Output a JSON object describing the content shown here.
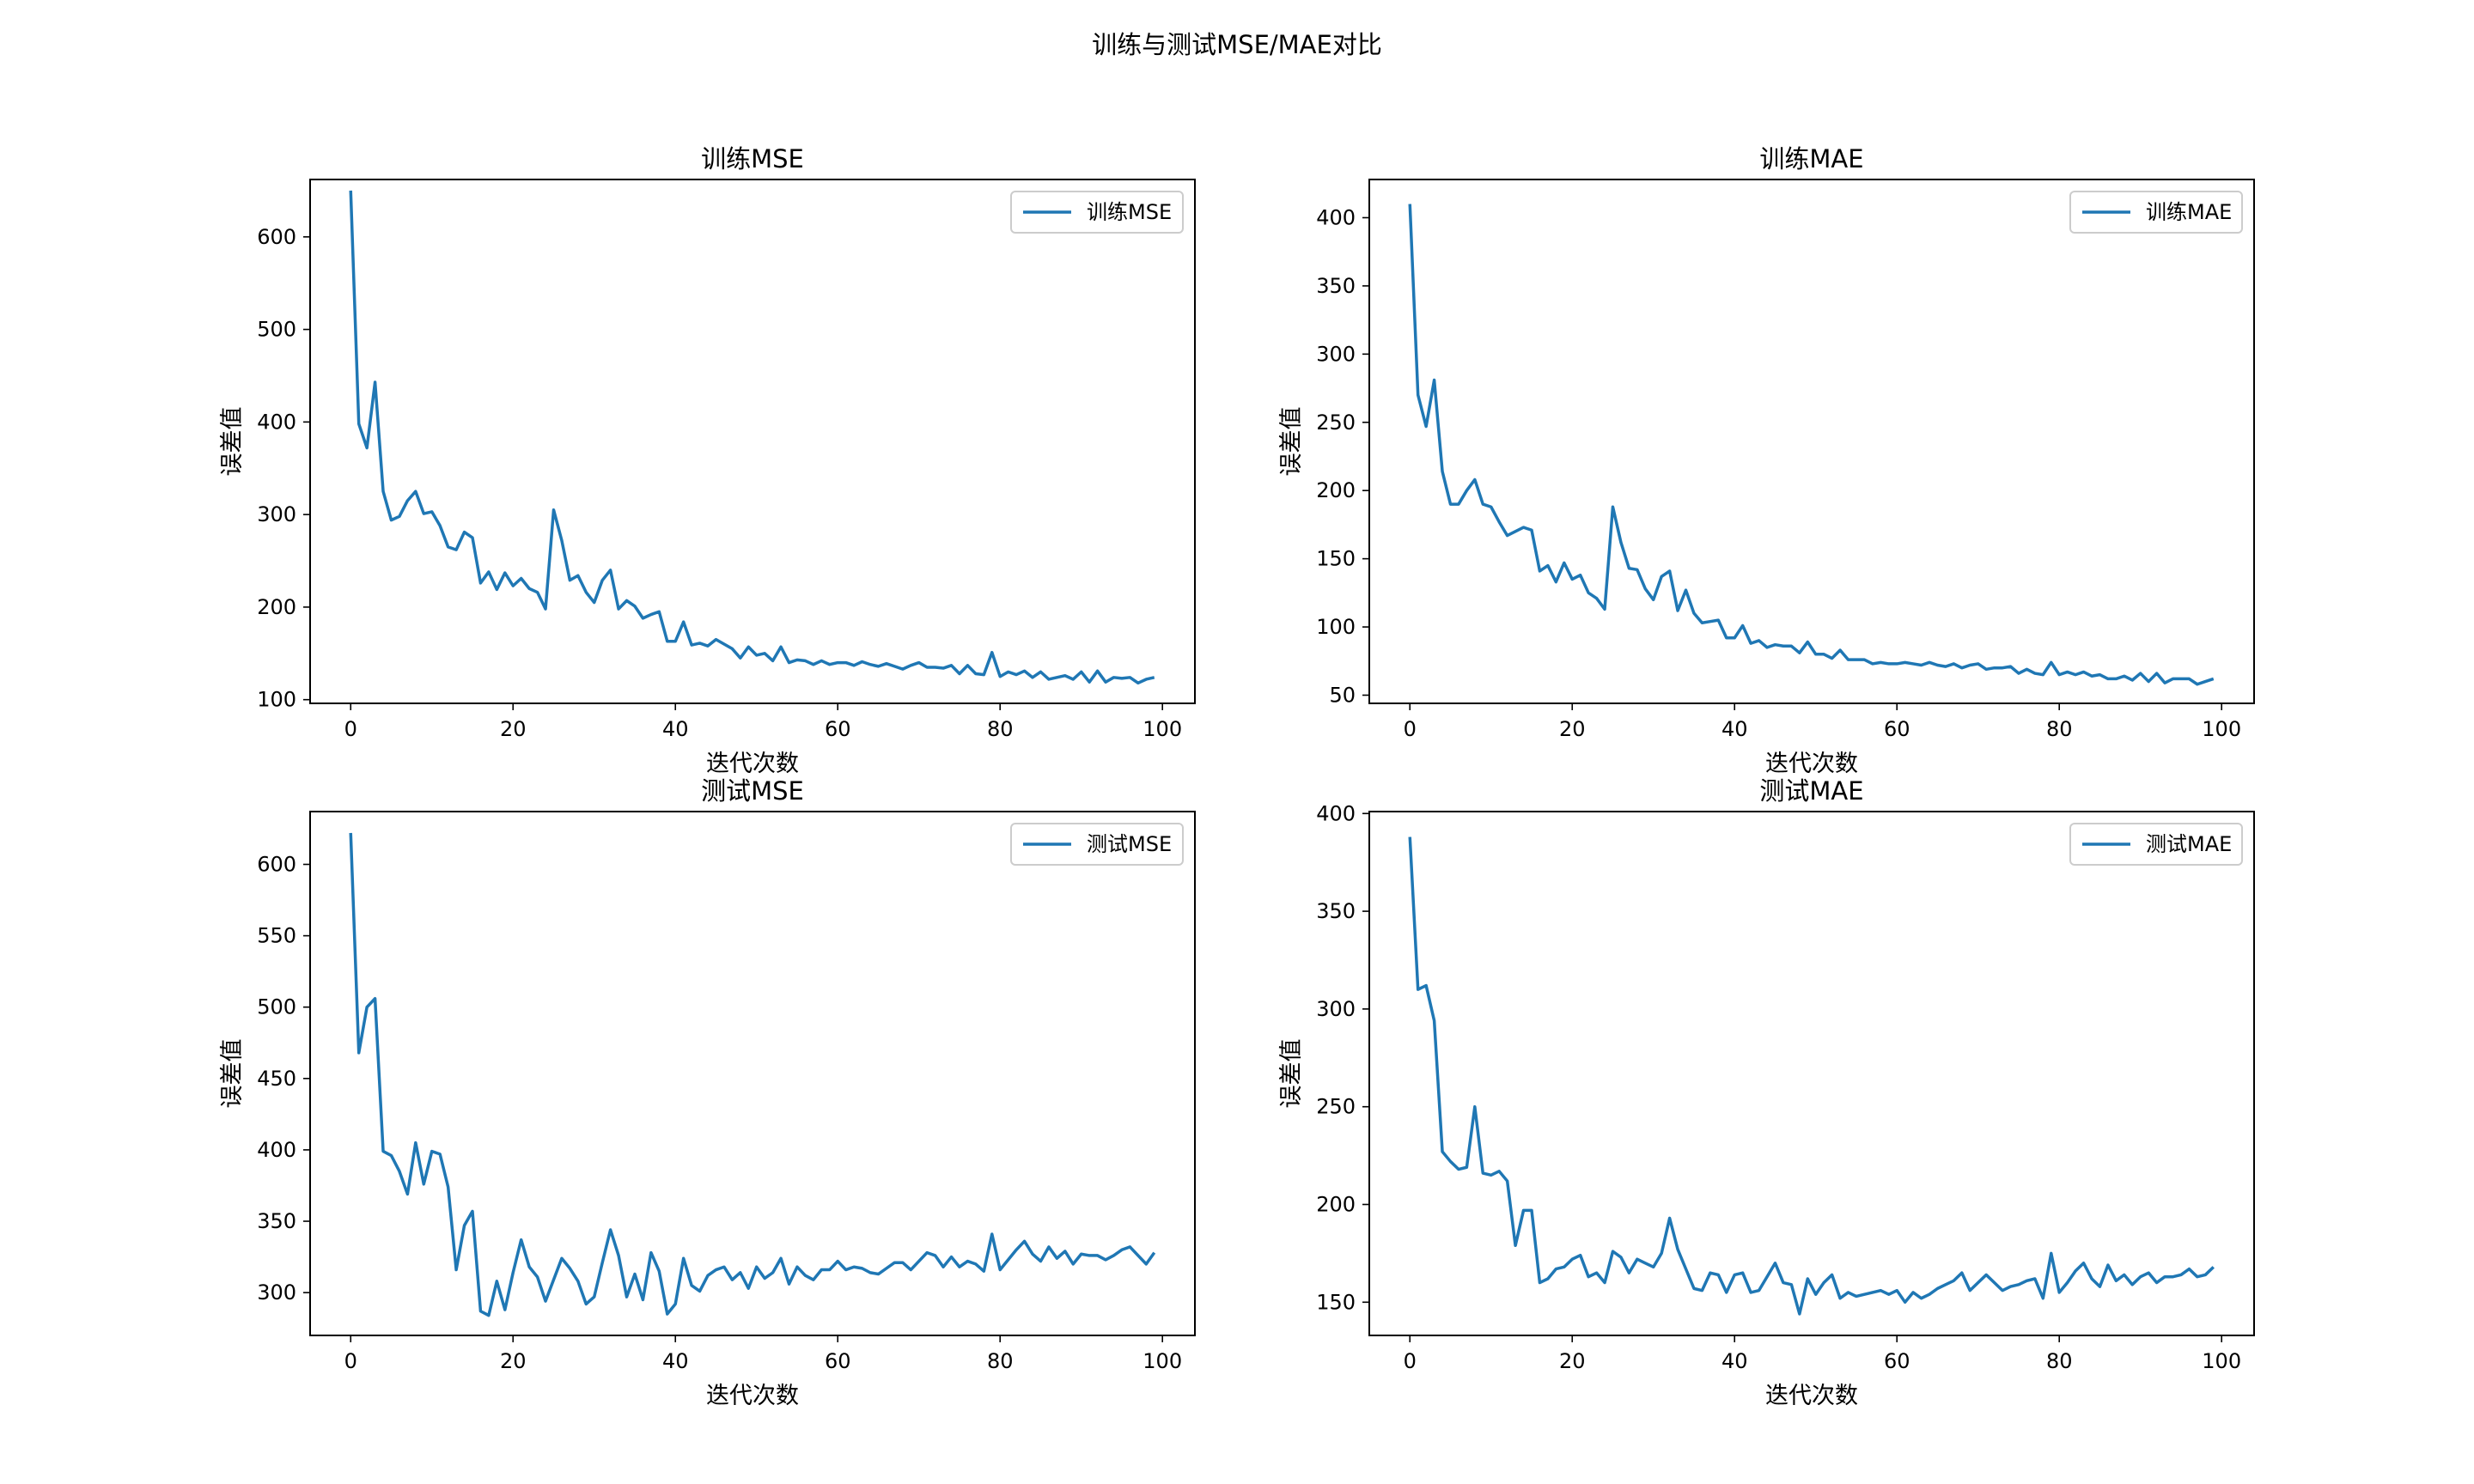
{
  "figure": {
    "suptitle": "训练与测试MSE/MAE对比"
  },
  "chart_data": [
    {
      "type": "line",
      "title": "训练MSE",
      "xlabel": "迭代次数",
      "ylabel": "误差值",
      "xlim": [
        -5,
        104
      ],
      "ylim": [
        96,
        662
      ],
      "xticks": [
        0,
        20,
        40,
        60,
        80,
        100
      ],
      "yticks": [
        100,
        200,
        300,
        400,
        500,
        600
      ],
      "legend": "top-right",
      "grid": false,
      "color": "#1f77b4",
      "series": [
        {
          "name": "训练MSE",
          "x_start": 0,
          "values": [
            650,
            398,
            372,
            443,
            325,
            294,
            298,
            315,
            325,
            301,
            303,
            288,
            265,
            262,
            281,
            275,
            226,
            238,
            219,
            237,
            223,
            231,
            220,
            216,
            198,
            305,
            272,
            229,
            234,
            216,
            205,
            229,
            240,
            198,
            207,
            201,
            188,
            192,
            195,
            163,
            163,
            184,
            159,
            161,
            158,
            165,
            160,
            155,
            145,
            157,
            148,
            150,
            142,
            157,
            140,
            143,
            142,
            138,
            142,
            138,
            140,
            140,
            137,
            141,
            138,
            136,
            139,
            136,
            133,
            137,
            140,
            135,
            135,
            134,
            137,
            128,
            137,
            128,
            127,
            151,
            125,
            130,
            127,
            131,
            124,
            130,
            122,
            124,
            126,
            122,
            130,
            119,
            131,
            119,
            124,
            123,
            124,
            118,
            122,
            124
          ]
        }
      ]
    },
    {
      "type": "line",
      "title": "训练MAE",
      "xlabel": "迭代次数",
      "ylabel": "误差值",
      "xlim": [
        -5,
        104
      ],
      "ylim": [
        44,
        428
      ],
      "xticks": [
        0,
        20,
        40,
        60,
        80,
        100
      ],
      "yticks": [
        50,
        100,
        150,
        200,
        250,
        300,
        350,
        400
      ],
      "legend": "top-right",
      "grid": false,
      "color": "#1f77b4",
      "series": [
        {
          "name": "训练MAE",
          "x_start": 0,
          "values": [
            410,
            270,
            247,
            281,
            214,
            190,
            190,
            200,
            208,
            190,
            188,
            177,
            167,
            170,
            173,
            171,
            141,
            145,
            133,
            147,
            135,
            138,
            125,
            121,
            113,
            188,
            162,
            143,
            142,
            128,
            120,
            137,
            141,
            112,
            127,
            110,
            103,
            104,
            105,
            92,
            92,
            101,
            88,
            90,
            85,
            87,
            86,
            86,
            81,
            89,
            80,
            80,
            77,
            83,
            76,
            76,
            76,
            73,
            74,
            73,
            73,
            74,
            73,
            72,
            74,
            72,
            71,
            73,
            70,
            72,
            73,
            69,
            70,
            70,
            71,
            66,
            69,
            66,
            65,
            74,
            65,
            67,
            65,
            67,
            64,
            65,
            62,
            62,
            64,
            61,
            66,
            60,
            66,
            59,
            62,
            62,
            62,
            58,
            60,
            62
          ]
        }
      ]
    },
    {
      "type": "line",
      "title": "测试MSE",
      "xlabel": "迭代次数",
      "ylabel": "误差值",
      "xlim": [
        -5,
        104
      ],
      "ylim": [
        270,
        637
      ],
      "xticks": [
        0,
        20,
        40,
        60,
        80,
        100
      ],
      "yticks": [
        300,
        350,
        400,
        450,
        500,
        550,
        600
      ],
      "legend": "top-right",
      "grid": false,
      "color": "#1f77b4",
      "series": [
        {
          "name": "测试MSE",
          "x_start": 0,
          "values": [
            622,
            468,
            500,
            506,
            399,
            396,
            385,
            369,
            405,
            376,
            399,
            397,
            374,
            316,
            347,
            357,
            287,
            284,
            308,
            288,
            314,
            337,
            318,
            311,
            294,
            309,
            324,
            317,
            308,
            292,
            297,
            321,
            344,
            326,
            297,
            313,
            295,
            328,
            315,
            285,
            292,
            324,
            305,
            301,
            312,
            316,
            318,
            309,
            314,
            303,
            318,
            310,
            314,
            324,
            306,
            318,
            312,
            309,
            316,
            316,
            322,
            316,
            318,
            317,
            314,
            313,
            317,
            321,
            321,
            316,
            322,
            328,
            326,
            318,
            325,
            318,
            322,
            320,
            315,
            341,
            316,
            323,
            330,
            336,
            327,
            322,
            332,
            324,
            329,
            320,
            327,
            326,
            326,
            323,
            326,
            330,
            332,
            326,
            320,
            328
          ]
        }
      ]
    },
    {
      "type": "line",
      "title": "测试MAE",
      "xlabel": "迭代次数",
      "ylabel": "误差值",
      "xlim": [
        -5,
        104
      ],
      "ylim": [
        133,
        401
      ],
      "xticks": [
        0,
        20,
        40,
        60,
        80,
        100
      ],
      "yticks": [
        150,
        200,
        250,
        300,
        350,
        400
      ],
      "legend": "top-right",
      "grid": false,
      "color": "#1f77b4",
      "series": [
        {
          "name": "测试MAE",
          "x_start": 0,
          "values": [
            388,
            310,
            312,
            294,
            227,
            222,
            218,
            219,
            250,
            216,
            215,
            217,
            212,
            179,
            197,
            197,
            160,
            162,
            167,
            168,
            172,
            174,
            163,
            165,
            160,
            176,
            173,
            165,
            172,
            170,
            168,
            175,
            193,
            177,
            167,
            157,
            156,
            165,
            164,
            155,
            164,
            165,
            155,
            156,
            163,
            170,
            160,
            159,
            144,
            162,
            154,
            160,
            164,
            152,
            155,
            153,
            154,
            155,
            156,
            154,
            156,
            150,
            155,
            152,
            154,
            157,
            159,
            161,
            165,
            156,
            160,
            164,
            160,
            156,
            158,
            159,
            161,
            162,
            152,
            175,
            155,
            160,
            166,
            170,
            162,
            158,
            169,
            161,
            164,
            159,
            163,
            165,
            160,
            163,
            163,
            164,
            167,
            163,
            164,
            168
          ]
        }
      ]
    }
  ]
}
